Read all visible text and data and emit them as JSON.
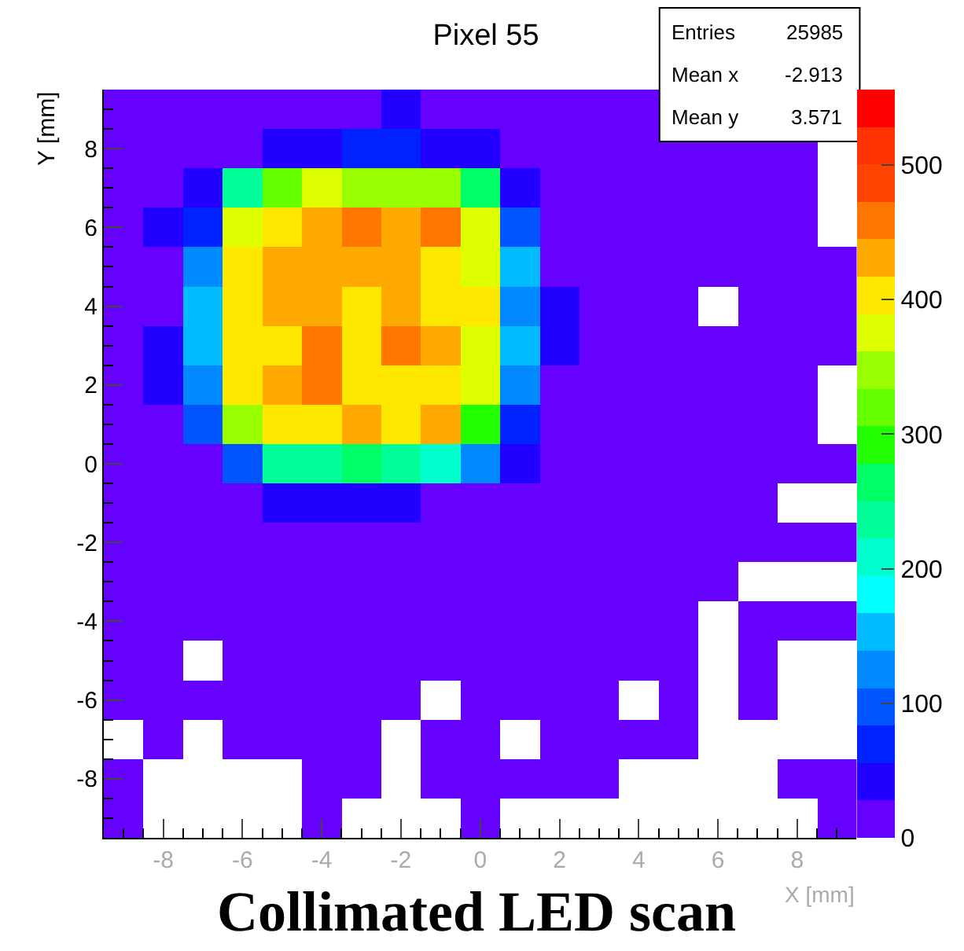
{
  "chart_data": {
    "type": "heatmap",
    "title": "Pixel 55",
    "subtitle": "Collimated LED scan",
    "xlabel": "X [mm]",
    "ylabel": "Y [mm]",
    "annotations": [
      "Entries 25985",
      "Mean x -2.913",
      "Mean y 3.571"
    ],
    "x": [
      -9,
      -8,
      -7,
      -6,
      -5,
      -4,
      -3,
      -2,
      -1,
      0,
      1,
      2,
      3,
      4,
      5,
      6,
      7,
      8,
      9
    ],
    "y": [
      9,
      8,
      7,
      6,
      5,
      4,
      3,
      2,
      1,
      0,
      -1,
      -2,
      -3,
      -4,
      -5,
      -6,
      -7,
      -8,
      -9
    ],
    "xlim": [
      -9.5,
      9.5
    ],
    "ylim": [
      -9.5,
      9.5
    ],
    "xticks": [
      -8,
      -6,
      -4,
      -2,
      0,
      2,
      4,
      6,
      8
    ],
    "yticks": [
      -8,
      -6,
      -4,
      -2,
      0,
      2,
      4,
      6,
      8
    ],
    "clim": [
      0,
      556
    ],
    "cticks": [
      0,
      100,
      200,
      300,
      400,
      500
    ],
    "colors": [
      "#6600ff",
      "#2200ff",
      "#0022ff",
      "#0055ff",
      "#0088ff",
      "#00bbff",
      "#00ffff",
      "#00ffcc",
      "#00ff99",
      "#00ff66",
      "#22ff00",
      "#66ff00",
      "#99ff00",
      "#ddff00",
      "#ffe800",
      "#ffaa00",
      "#ff7700",
      "#ff4400",
      "#ff3300",
      "#ff0000"
    ],
    "cells": [
      [
        10,
        10,
        10,
        10,
        10,
        10,
        10,
        42,
        10,
        10,
        10,
        10,
        10,
        10,
        null,
        null,
        null,
        null,
        null
      ],
      [
        10,
        10,
        10,
        10,
        42,
        42,
        70,
        70,
        42,
        42,
        10,
        10,
        10,
        10,
        10,
        10,
        10,
        10,
        null
      ],
      [
        10,
        10,
        42,
        236,
        320,
        375,
        348,
        348,
        348,
        264,
        42,
        10,
        10,
        10,
        10,
        10,
        10,
        10,
        null
      ],
      [
        10,
        42,
        70,
        375,
        403,
        431,
        459,
        431,
        459,
        375,
        97,
        10,
        10,
        10,
        10,
        10,
        10,
        10,
        null
      ],
      [
        10,
        10,
        125,
        403,
        431,
        431,
        431,
        431,
        403,
        375,
        153,
        10,
        10,
        10,
        10,
        10,
        10,
        10,
        10
      ],
      [
        10,
        10,
        153,
        403,
        431,
        431,
        403,
        431,
        403,
        403,
        125,
        42,
        10,
        10,
        10,
        null,
        10,
        10,
        10
      ],
      [
        10,
        42,
        153,
        403,
        403,
        459,
        403,
        459,
        431,
        375,
        153,
        42,
        10,
        10,
        10,
        10,
        10,
        10,
        10
      ],
      [
        10,
        42,
        125,
        403,
        431,
        459,
        403,
        403,
        403,
        375,
        125,
        10,
        10,
        10,
        10,
        10,
        10,
        10,
        null
      ],
      [
        10,
        10,
        97,
        348,
        403,
        403,
        431,
        403,
        431,
        292,
        70,
        10,
        10,
        10,
        10,
        10,
        10,
        10,
        null
      ],
      [
        10,
        10,
        10,
        97,
        236,
        236,
        264,
        236,
        209,
        125,
        42,
        10,
        10,
        10,
        10,
        10,
        10,
        10,
        10
      ],
      [
        10,
        10,
        10,
        10,
        42,
        42,
        42,
        42,
        10,
        10,
        10,
        10,
        10,
        10,
        10,
        10,
        10,
        null,
        null
      ],
      [
        10,
        10,
        10,
        10,
        10,
        10,
        10,
        10,
        10,
        10,
        10,
        10,
        10,
        10,
        10,
        10,
        10,
        10,
        10
      ],
      [
        10,
        10,
        10,
        10,
        10,
        10,
        10,
        10,
        10,
        10,
        10,
        10,
        10,
        10,
        10,
        10,
        null,
        null,
        null
      ],
      [
        10,
        10,
        10,
        10,
        10,
        10,
        10,
        10,
        10,
        10,
        10,
        10,
        10,
        10,
        10,
        null,
        10,
        10,
        10
      ],
      [
        10,
        10,
        null,
        10,
        10,
        10,
        10,
        10,
        10,
        10,
        10,
        10,
        10,
        10,
        10,
        null,
        10,
        null,
        null
      ],
      [
        10,
        10,
        10,
        10,
        10,
        10,
        10,
        10,
        null,
        10,
        10,
        10,
        10,
        null,
        10,
        null,
        10,
        null,
        null
      ],
      [
        null,
        10,
        null,
        10,
        10,
        10,
        10,
        null,
        10,
        10,
        null,
        10,
        10,
        10,
        10,
        null,
        null,
        null,
        null
      ],
      [
        10,
        null,
        null,
        null,
        null,
        10,
        10,
        null,
        10,
        10,
        10,
        10,
        10,
        null,
        null,
        null,
        null,
        10,
        10
      ],
      [
        10,
        null,
        null,
        null,
        null,
        10,
        null,
        null,
        null,
        10,
        null,
        null,
        null,
        null,
        null,
        null,
        null,
        null,
        10
      ]
    ]
  }
}
